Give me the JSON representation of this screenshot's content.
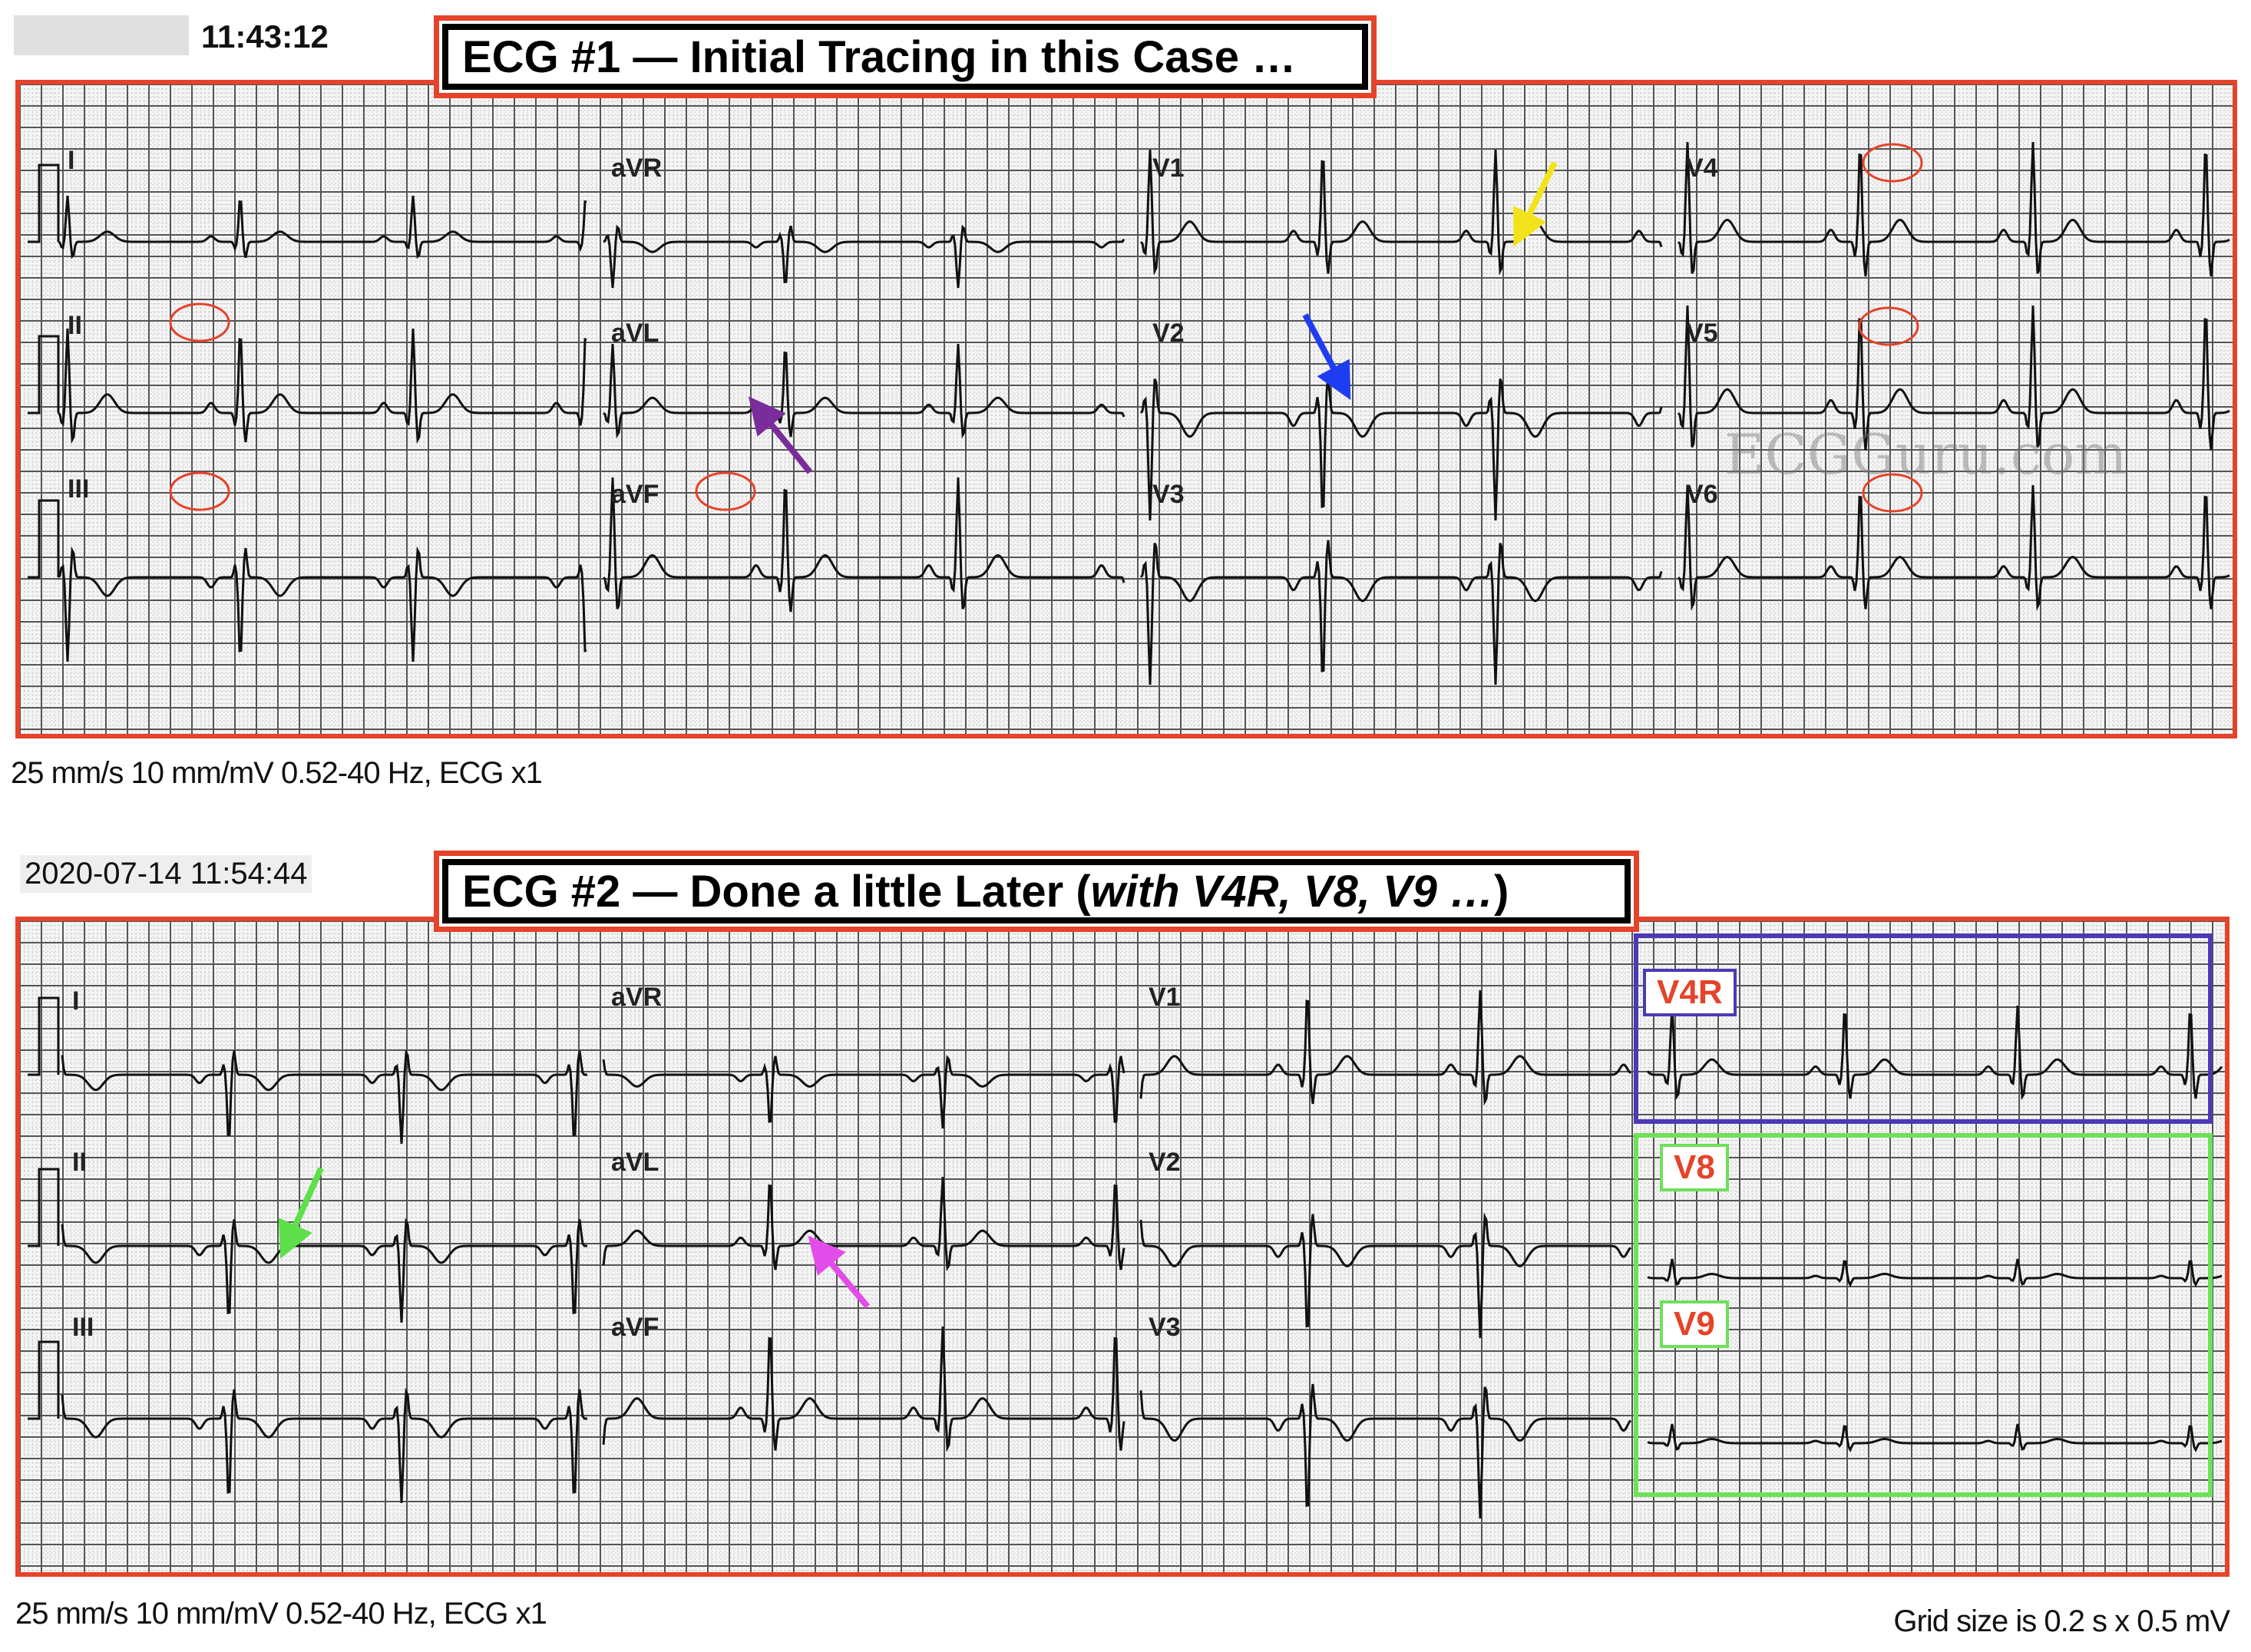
{
  "ecg1": {
    "timestamp": "11:43:12",
    "title": "ECG #1 — Initial Tracing in this Case …",
    "caption": "25 mm/s 10 mm/mV 0.52-40 Hz, ECG x1",
    "leads": [
      "I",
      "II",
      "III",
      "aVR",
      "aVL",
      "aVF",
      "V1",
      "V2",
      "V3",
      "V4",
      "V5",
      "V6"
    ],
    "watermark": "ECGGuru.com",
    "arrow_colors": {
      "yellow": "#f2e21a",
      "blue": "#1f3df0",
      "purple": "#7a2c9a"
    },
    "circle_color": "#e5432a"
  },
  "ecg2": {
    "timestamp": "2020-07-14 11:54:44",
    "title_main": "ECG #2 — Done a little Later (",
    "title_italic": " with V4R, V8, V9 …",
    "title_end": ")",
    "caption": "25 mm/s 10 mm/mV 0.52-40 Hz, ECG x1",
    "grid_note": "Grid size is 0.2 s x 0.5 mV",
    "leads": [
      "I",
      "II",
      "III",
      "aVR",
      "aVL",
      "aVF",
      "V1",
      "V2",
      "V3"
    ],
    "extra_leads": {
      "v4r": "V4R",
      "v8": "V8",
      "v9": "V9"
    },
    "box_colors": {
      "v4r": "#4a3bb5",
      "v8_v9": "#6fe05a"
    },
    "arrow_colors": {
      "green": "#5ee04a",
      "magenta": "#e24ce8"
    }
  },
  "colors": {
    "frame": "#e5432a"
  }
}
